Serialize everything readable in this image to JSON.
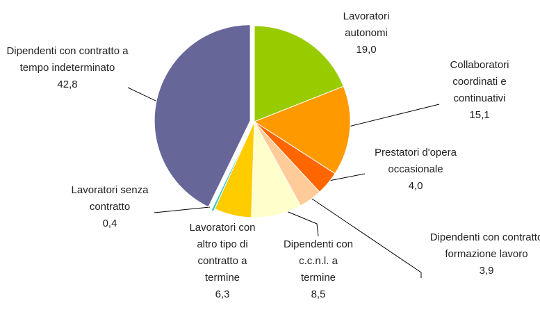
{
  "chart_data": {
    "type": "pie",
    "categories": [
      "Lavoratori autonomi",
      "Collaboratori coordinati e continuativi",
      "Prestatori d'opera occasionale",
      "Dipendenti con contratto formazione lavoro",
      "Dipendenti con c.c.n.l. a termine",
      "Lavoratori con altro tipo di contratto a termine",
      "Lavoratori senza contratto",
      "Dipendenti con contratto a tempo indeterminato"
    ],
    "values": [
      19.0,
      15.1,
      4.0,
      3.9,
      8.5,
      6.3,
      0.4,
      42.8
    ],
    "value_labels": [
      "19,0",
      "15,1",
      "4,0",
      "3,9",
      "8,5",
      "6,3",
      "0,4",
      "42,8"
    ],
    "colors": [
      "#99cc00",
      "#ff9900",
      "#ff6600",
      "#ffcc99",
      "#ffffcc",
      "#ffcc00",
      "#33cccc",
      "#666699"
    ]
  }
}
